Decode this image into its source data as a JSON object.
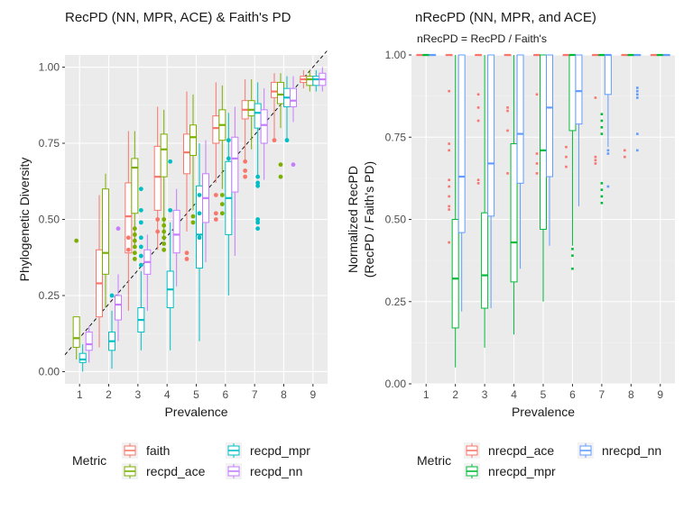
{
  "chart_data": [
    {
      "type": "boxplot",
      "title": "RecPD (NN, MPR, ACE) & Faith's PD",
      "xlabel": "Prevalence",
      "ylabel": "Phylogenetic Diversity",
      "categories": [
        "1",
        "2",
        "3",
        "4",
        "5",
        "6",
        "7",
        "8",
        "9"
      ],
      "ylim": [
        -0.04,
        1.04
      ],
      "yticks": [
        "0.00",
        "0.25",
        "0.50",
        "0.75",
        "1.00"
      ],
      "reference_line": "y = x/9 (dashed)",
      "legend": {
        "title": "Metric",
        "position": "bottom"
      },
      "series": [
        {
          "name": "faith",
          "color": "#F8766D",
          "boxes": [
            null,
            {
              "q1": 0.18,
              "med": 0.29,
              "q3": 0.4,
              "lo": 0.08,
              "hi": 0.58,
              "out": []
            },
            {
              "q1": 0.39,
              "med": 0.51,
              "q3": 0.62,
              "lo": 0.2,
              "hi": 0.79,
              "out": [
                0.4,
                0.44
              ]
            },
            {
              "q1": 0.53,
              "med": 0.64,
              "q3": 0.74,
              "lo": 0.4,
              "hi": 0.87,
              "out": [
                0.46,
                0.5
              ]
            },
            {
              "q1": 0.65,
              "med": 0.72,
              "q3": 0.78,
              "lo": 0.46,
              "hi": 0.92,
              "out": [
                0.37,
                0.39
              ]
            },
            {
              "q1": 0.75,
              "med": 0.8,
              "q3": 0.84,
              "lo": 0.62,
              "hi": 0.95,
              "out": [
                0.5,
                0.52,
                0.58
              ]
            },
            {
              "q1": 0.83,
              "med": 0.86,
              "q3": 0.89,
              "lo": 0.69,
              "hi": 0.96,
              "out": [
                0.64,
                0.66,
                0.69
              ]
            },
            {
              "q1": 0.9,
              "med": 0.92,
              "q3": 0.95,
              "lo": 0.76,
              "hi": 0.98,
              "out": [
                0.76
              ]
            },
            {
              "q1": 0.95,
              "med": 0.96,
              "q3": 0.97,
              "lo": 0.93,
              "hi": 0.99,
              "out": []
            }
          ]
        },
        {
          "name": "recpd_ace",
          "color": "#7CAE00",
          "boxes": [
            {
              "q1": 0.08,
              "med": 0.11,
              "q3": 0.18,
              "lo": 0.04,
              "hi": 0.18,
              "out": [
                0.43
              ]
            },
            {
              "q1": 0.32,
              "med": 0.39,
              "q3": 0.6,
              "lo": 0.21,
              "hi": 0.65,
              "out": []
            },
            {
              "q1": 0.52,
              "med": 0.67,
              "q3": 0.7,
              "lo": 0.41,
              "hi": 0.79,
              "out": [
                0.37,
                0.39,
                0.41,
                0.43,
                0.45,
                0.47
              ]
            },
            {
              "q1": 0.64,
              "med": 0.73,
              "q3": 0.78,
              "lo": 0.43,
              "hi": 0.86,
              "out": [
                0.4,
                0.42,
                0.44,
                0.46,
                0.48,
                0.5
              ]
            },
            {
              "q1": 0.71,
              "med": 0.77,
              "q3": 0.81,
              "lo": 0.53,
              "hi": 0.91,
              "out": [
                0.49,
                0.51
              ]
            },
            {
              "q1": 0.76,
              "med": 0.81,
              "q3": 0.86,
              "lo": 0.6,
              "hi": 0.94,
              "out": [
                0.52,
                0.55,
                0.58
              ]
            },
            {
              "q1": 0.84,
              "med": 0.86,
              "q3": 0.89,
              "lo": 0.73,
              "hi": 0.96,
              "out": []
            },
            {
              "q1": 0.88,
              "med": 0.91,
              "q3": 0.95,
              "lo": 0.8,
              "hi": 0.98,
              "out": [
                0.64,
                0.68
              ]
            },
            {
              "q1": 0.94,
              "med": 0.96,
              "q3": 0.97,
              "lo": 0.92,
              "hi": 0.99,
              "out": []
            }
          ]
        },
        {
          "name": "recpd_mpr",
          "color": "#00BFC4",
          "boxes": [
            {
              "q1": 0.03,
              "med": 0.04,
              "q3": 0.06,
              "lo": 0.0,
              "hi": 0.09,
              "out": []
            },
            {
              "q1": 0.07,
              "med": 0.1,
              "q3": 0.13,
              "lo": 0.01,
              "hi": 0.2,
              "out": [
                0.25
              ]
            },
            {
              "q1": 0.13,
              "med": 0.17,
              "q3": 0.21,
              "lo": 0.07,
              "hi": 0.33,
              "out": [
                0.35,
                0.38,
                0.41,
                0.44,
                0.49,
                0.53,
                0.6
              ]
            },
            {
              "q1": 0.21,
              "med": 0.27,
              "q3": 0.33,
              "lo": 0.07,
              "hi": 0.49,
              "out": [
                0.53,
                0.69
              ]
            },
            {
              "q1": 0.34,
              "med": 0.45,
              "q3": 0.61,
              "lo": 0.1,
              "hi": 0.75,
              "out": [
                0.44,
                0.52,
                0.58
              ]
            },
            {
              "q1": 0.45,
              "med": 0.57,
              "q3": 0.69,
              "lo": 0.25,
              "hi": 0.85,
              "out": [
                0.7,
                0.76
              ]
            },
            {
              "q1": 0.8,
              "med": 0.85,
              "q3": 0.88,
              "lo": 0.64,
              "hi": 0.95,
              "out": [
                0.47,
                0.49,
                0.5,
                0.61,
                0.62,
                0.64
              ]
            },
            {
              "q1": 0.87,
              "med": 0.9,
              "q3": 0.93,
              "lo": 0.76,
              "hi": 0.97,
              "out": [
                0.76
              ]
            },
            {
              "q1": 0.94,
              "med": 0.96,
              "q3": 0.97,
              "lo": 0.92,
              "hi": 0.99,
              "out": []
            }
          ]
        },
        {
          "name": "recpd_nn",
          "color": "#C77CFF",
          "boxes": [
            {
              "q1": 0.07,
              "med": 0.09,
              "q3": 0.13,
              "lo": 0.03,
              "hi": 0.15,
              "out": []
            },
            {
              "q1": 0.17,
              "med": 0.22,
              "q3": 0.25,
              "lo": 0.1,
              "hi": 0.32,
              "out": [
                0.47
              ]
            },
            {
              "q1": 0.32,
              "med": 0.36,
              "q3": 0.4,
              "lo": 0.2,
              "hi": 0.45,
              "out": []
            },
            {
              "q1": 0.39,
              "med": 0.45,
              "q3": 0.53,
              "lo": 0.28,
              "hi": 0.6,
              "out": []
            },
            {
              "q1": 0.49,
              "med": 0.57,
              "q3": 0.65,
              "lo": 0.36,
              "hi": 0.76,
              "out": []
            },
            {
              "q1": 0.59,
              "med": 0.7,
              "q3": 0.77,
              "lo": 0.38,
              "hi": 0.87,
              "out": []
            },
            {
              "q1": 0.75,
              "med": 0.81,
              "q3": 0.86,
              "lo": 0.63,
              "hi": 0.93,
              "out": []
            },
            {
              "q1": 0.87,
              "med": 0.89,
              "q3": 0.93,
              "lo": 0.82,
              "hi": 0.97,
              "out": [
                0.68
              ]
            },
            {
              "q1": 0.94,
              "med": 0.96,
              "q3": 0.98,
              "lo": 0.92,
              "hi": 1.0,
              "out": []
            }
          ]
        }
      ]
    },
    {
      "type": "boxplot",
      "title": "nRecPD (NN, MPR, and ACE)",
      "subtitle": "nRecPD = RecPD / Faith's",
      "xlabel": "Prevalence",
      "ylabel": "Normalized RecPD",
      "ylabel2": "(RecPD / Faith's PD)",
      "categories": [
        "1",
        "2",
        "3",
        "4",
        "5",
        "6",
        "7",
        "8",
        "9"
      ],
      "ylim": [
        0,
        1.0
      ],
      "yticks": [
        "0.00",
        "0.25",
        "0.50",
        "0.75",
        "1.00"
      ],
      "legend": {
        "title": "Metric",
        "position": "bottom"
      },
      "series": [
        {
          "name": "nrecpd_ace",
          "color": "#F8766D",
          "boxes": [
            {
              "q1": 1.0,
              "med": 1.0,
              "q3": 1.0,
              "lo": 1.0,
              "hi": 1.0,
              "out": []
            },
            {
              "q1": 1.0,
              "med": 1.0,
              "q3": 1.0,
              "lo": 1.0,
              "hi": 1.0,
              "out": [
                0.89,
                0.73,
                0.71,
                0.62,
                0.6,
                0.57,
                0.54,
                0.53,
                0.43
              ]
            },
            {
              "q1": 1.0,
              "med": 1.0,
              "q3": 1.0,
              "lo": 1.0,
              "hi": 1.0,
              "out": [
                0.88,
                0.84,
                0.8,
                0.62,
                0.61
              ]
            },
            {
              "q1": 1.0,
              "med": 1.0,
              "q3": 1.0,
              "lo": 1.0,
              "hi": 1.0,
              "out": [
                0.84,
                0.83,
                0.77,
                0.64
              ]
            },
            {
              "q1": 1.0,
              "med": 1.0,
              "q3": 1.0,
              "lo": 1.0,
              "hi": 1.0,
              "out": [
                0.88,
                0.7,
                0.67,
                0.64
              ]
            },
            {
              "q1": 1.0,
              "med": 1.0,
              "q3": 1.0,
              "lo": 1.0,
              "hi": 1.0,
              "out": [
                0.72,
                0.69,
                0.66
              ]
            },
            {
              "q1": 1.0,
              "med": 1.0,
              "q3": 1.0,
              "lo": 1.0,
              "hi": 1.0,
              "out": [
                0.87,
                0.69,
                0.68,
                0.67
              ]
            },
            {
              "q1": 1.0,
              "med": 1.0,
              "q3": 1.0,
              "lo": 1.0,
              "hi": 1.0,
              "out": [
                0.71,
                0.69
              ]
            },
            {
              "q1": 1.0,
              "med": 1.0,
              "q3": 1.0,
              "lo": 1.0,
              "hi": 1.0,
              "out": []
            }
          ]
        },
        {
          "name": "nrecpd_mpr",
          "color": "#00BA38",
          "boxes": [
            {
              "q1": 1.0,
              "med": 1.0,
              "q3": 1.0,
              "lo": 1.0,
              "hi": 1.0,
              "out": []
            },
            {
              "q1": 0.17,
              "med": 0.32,
              "q3": 0.5,
              "lo": 0.05,
              "hi": 1.0,
              "out": []
            },
            {
              "q1": 0.23,
              "med": 0.33,
              "q3": 0.52,
              "lo": 0.11,
              "hi": 1.0,
              "out": []
            },
            {
              "q1": 0.31,
              "med": 0.43,
              "q3": 0.73,
              "lo": 0.15,
              "hi": 1.0,
              "out": []
            },
            {
              "q1": 0.47,
              "med": 0.71,
              "q3": 1.0,
              "lo": 0.25,
              "hi": 1.0,
              "out": []
            },
            {
              "q1": 0.77,
              "med": 1.0,
              "q3": 1.0,
              "lo": 0.42,
              "hi": 1.0,
              "out": [
                0.41,
                0.39,
                0.35
              ]
            },
            {
              "q1": 1.0,
              "med": 1.0,
              "q3": 1.0,
              "lo": 1.0,
              "hi": 1.0,
              "out": [
                0.82,
                0.8,
                0.78,
                0.76,
                0.61,
                0.59,
                0.57,
                0.55
              ]
            },
            {
              "q1": 1.0,
              "med": 1.0,
              "q3": 1.0,
              "lo": 1.0,
              "hi": 1.0,
              "out": []
            },
            {
              "q1": 1.0,
              "med": 1.0,
              "q3": 1.0,
              "lo": 1.0,
              "hi": 1.0,
              "out": []
            }
          ]
        },
        {
          "name": "nrecpd_nn",
          "color": "#619CFF",
          "boxes": [
            {
              "q1": 1.0,
              "med": 1.0,
              "q3": 1.0,
              "lo": 1.0,
              "hi": 1.0,
              "out": []
            },
            {
              "q1": 0.46,
              "med": 0.63,
              "q3": 1.0,
              "lo": 0.22,
              "hi": 1.0,
              "out": []
            },
            {
              "q1": 0.51,
              "med": 0.67,
              "q3": 1.0,
              "lo": 0.23,
              "hi": 1.0,
              "out": []
            },
            {
              "q1": 0.61,
              "med": 0.76,
              "q3": 1.0,
              "lo": 0.35,
              "hi": 1.0,
              "out": []
            },
            {
              "q1": 0.63,
              "med": 0.84,
              "q3": 1.0,
              "lo": 0.42,
              "hi": 1.0,
              "out": []
            },
            {
              "q1": 0.79,
              "med": 0.89,
              "q3": 1.0,
              "lo": 0.54,
              "hi": 1.0,
              "out": []
            },
            {
              "q1": 0.88,
              "med": 1.0,
              "q3": 1.0,
              "lo": 0.72,
              "hi": 1.0,
              "out": [
                0.71,
                0.7,
                0.6
              ]
            },
            {
              "q1": 1.0,
              "med": 1.0,
              "q3": 1.0,
              "lo": 1.0,
              "hi": 1.0,
              "out": [
                0.9,
                0.89,
                0.88,
                0.87,
                0.76,
                0.71
              ]
            },
            {
              "q1": 1.0,
              "med": 1.0,
              "q3": 1.0,
              "lo": 1.0,
              "hi": 1.0,
              "out": []
            }
          ]
        }
      ]
    }
  ]
}
